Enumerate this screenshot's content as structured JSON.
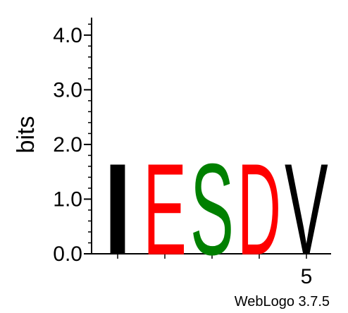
{
  "chart_data": {
    "type": "sequence-logo",
    "ylabel": "bits",
    "ylim": [
      0,
      4.32
    ],
    "yticks": [
      {
        "value": 0,
        "label": "0.0"
      },
      {
        "value": 1,
        "label": "1.0"
      },
      {
        "value": 2,
        "label": "2.0"
      },
      {
        "value": 3,
        "label": "3.0"
      },
      {
        "value": 4,
        "label": "4.0"
      }
    ],
    "positions": [
      {
        "position": 1,
        "letter": "I",
        "height": 1.87,
        "color": "#000000"
      },
      {
        "position": 2,
        "letter": "E",
        "height": 1.87,
        "color": "#ff0000"
      },
      {
        "position": 3,
        "letter": "S",
        "height": 1.87,
        "color": "#008000"
      },
      {
        "position": 4,
        "letter": "D",
        "height": 1.87,
        "color": "#ff0000"
      },
      {
        "position": 5,
        "letter": "V",
        "height": 1.87,
        "color": "#000000"
      }
    ],
    "xtick_labels": [
      {
        "position": 5,
        "label": "5"
      }
    ],
    "footer": "WebLogo 3.7.5"
  }
}
